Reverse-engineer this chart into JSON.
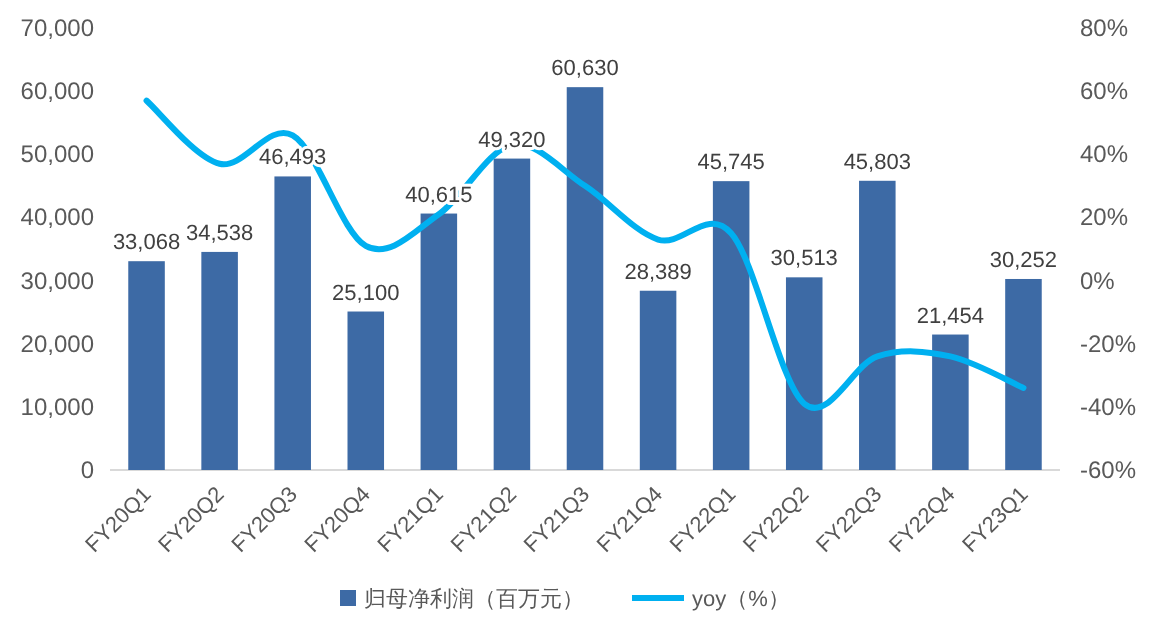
{
  "chart_data": {
    "type": "bar",
    "categories": [
      "FY20Q1",
      "FY20Q2",
      "FY20Q3",
      "FY20Q4",
      "FY21Q1",
      "FY21Q2",
      "FY21Q3",
      "FY21Q4",
      "FY22Q1",
      "FY22Q2",
      "FY22Q3",
      "FY22Q4",
      "FY23Q1"
    ],
    "series": [
      {
        "name": "归母净利润（百万元）",
        "color": "#3d6aa5",
        "values": [
          33068,
          34538,
          46493,
          25100,
          40615,
          49320,
          60630,
          28389,
          45745,
          30513,
          45803,
          21454,
          30252
        ],
        "value_labels": [
          "33,068",
          "34,538",
          "46,493",
          "25,100",
          "40,615",
          "49,320",
          "60,630",
          "28,389",
          "45,745",
          "30,513",
          "45,803",
          "21,454",
          "30,252"
        ]
      },
      {
        "name": "yoy（%）",
        "type": "line",
        "axis": "y2",
        "color": "#00b0f0",
        "values": [
          57,
          37,
          46,
          11,
          21,
          43,
          30,
          13,
          15,
          -39,
          -24,
          -24,
          -34
        ]
      }
    ],
    "ylim": [
      0,
      70000
    ],
    "yticks": [
      {
        "value": 0,
        "label": "0"
      },
      {
        "value": 10000,
        "label": "10,000"
      },
      {
        "value": 20000,
        "label": "20,000"
      },
      {
        "value": 30000,
        "label": "30,000"
      },
      {
        "value": 40000,
        "label": "40,000"
      },
      {
        "value": 50000,
        "label": "50,000"
      },
      {
        "value": 60000,
        "label": "60,000"
      },
      {
        "value": 70000,
        "label": "70,000"
      }
    ],
    "y2lim": [
      -60,
      80
    ],
    "y2ticks": [
      {
        "value": -60,
        "label": "-60%"
      },
      {
        "value": -40,
        "label": "-40%"
      },
      {
        "value": -20,
        "label": "-20%"
      },
      {
        "value": 0,
        "label": "0%"
      },
      {
        "value": 20,
        "label": "20%"
      },
      {
        "value": 40,
        "label": "40%"
      },
      {
        "value": 60,
        "label": "60%"
      },
      {
        "value": 80,
        "label": "80%"
      }
    ],
    "legend": "bottom"
  }
}
